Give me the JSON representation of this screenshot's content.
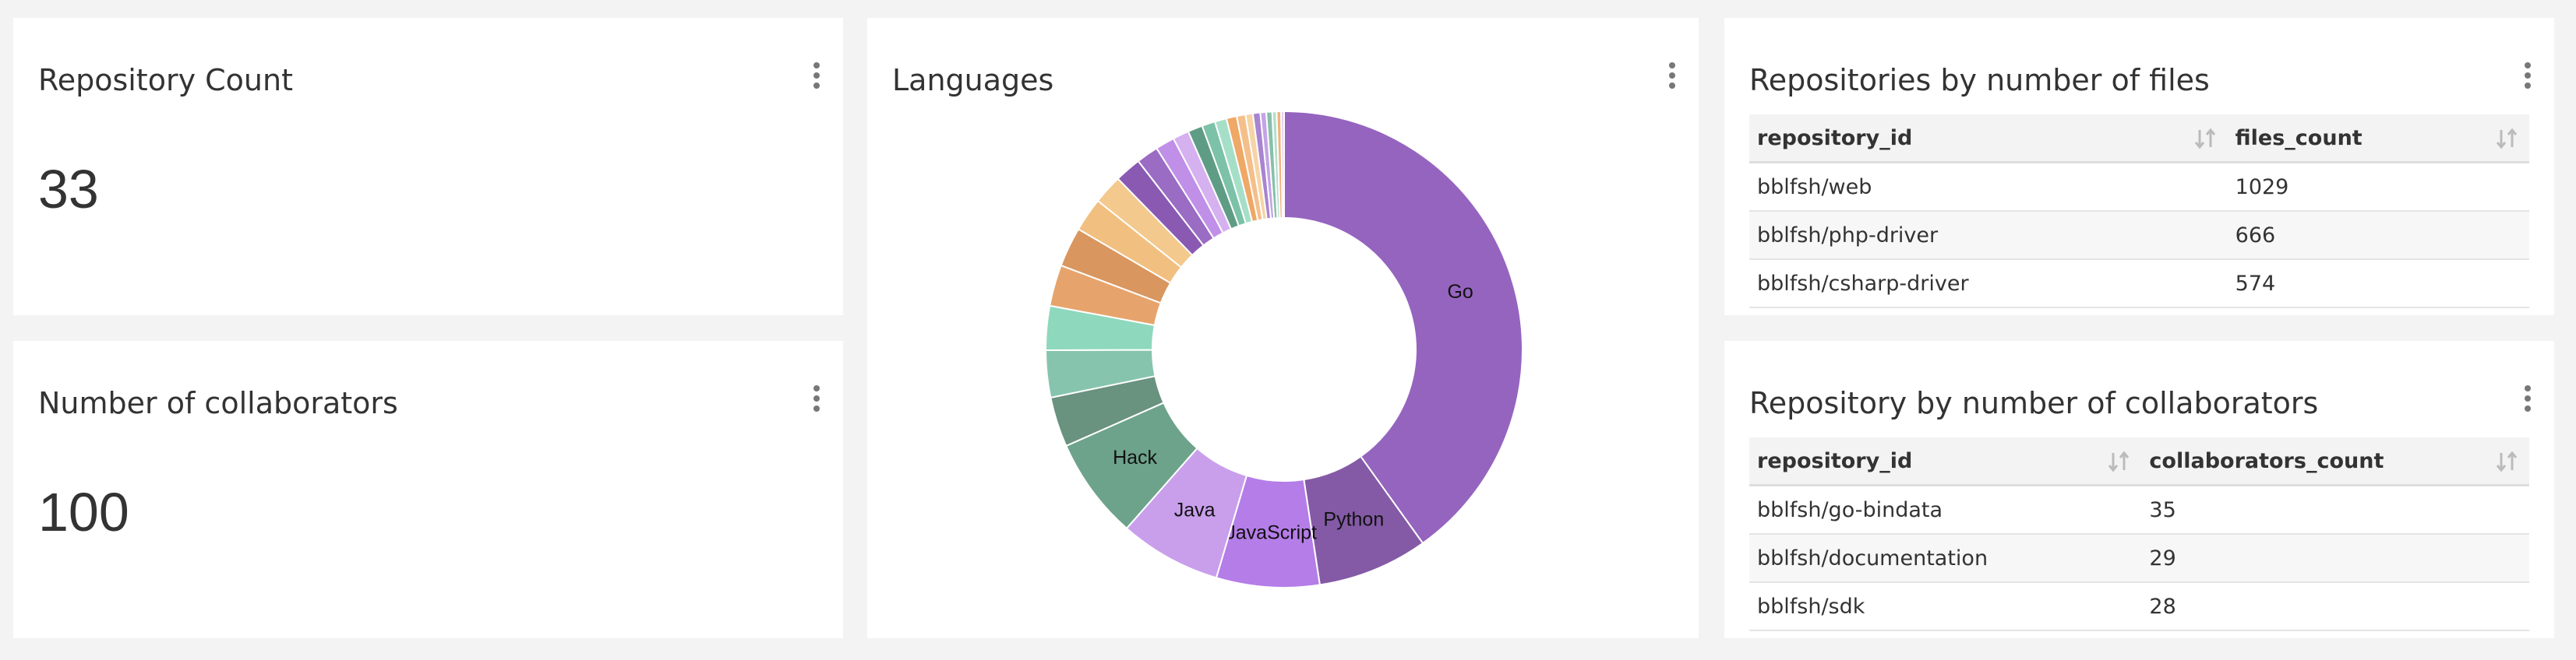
{
  "cards": [
    {
      "title": "Repository Count",
      "value": 33
    },
    {
      "title": "Number of collaborators",
      "value": 100
    }
  ],
  "tables": [
    {
      "title": "Repositories by number of files",
      "columns": [
        "repository_id",
        "files_count"
      ],
      "rows": [
        [
          "bblfsh/web",
          1029
        ],
        [
          "bblfsh/php-driver",
          666
        ],
        [
          "bblfsh/csharp-driver",
          574
        ]
      ]
    },
    {
      "title": "Repository by number of collaborators",
      "columns": [
        "repository_id",
        "collaborators_count"
      ],
      "rows": [
        [
          "bblfsh/go-bindata",
          35
        ],
        [
          "bblfsh/documentation",
          29
        ],
        [
          "bblfsh/sdk",
          28
        ]
      ]
    }
  ],
  "chart_data": {
    "type": "pie",
    "title": "Languages",
    "donut": true,
    "categories": [
      "Go",
      "Python",
      "JavaScript",
      "Java",
      "Hack",
      null,
      null,
      null,
      null,
      null,
      null,
      null,
      null,
      null,
      null,
      null,
      null,
      null,
      null,
      null,
      null,
      null,
      null,
      null,
      null,
      null,
      null,
      null
    ],
    "values": [
      40.2,
      7.5,
      7.0,
      6.9,
      6.9,
      3.4,
      3.2,
      3.0,
      2.8,
      2.7,
      2.3,
      2.0,
      1.8,
      1.5,
      1.3,
      1.1,
      1.0,
      0.9,
      0.8,
      0.7,
      0.6,
      0.5,
      0.5,
      0.4,
      0.4,
      0.3,
      0.3,
      0.2
    ],
    "colors": [
      "#9564bf",
      "#845aa6",
      "#b57de8",
      "#c99fec",
      "#6da38b",
      "#69927f",
      "#86c4ae",
      "#8ed8bd",
      "#e6a46c",
      "#d9965f",
      "#f1c080",
      "#f3c98d",
      "#8a5ab3",
      "#9a6cc4",
      "#c08fe8",
      "#d5b1f0",
      "#5f9c85",
      "#7cc2a8",
      "#a6dfc8",
      "#efa866",
      "#f4bf8b",
      "#f7d4a6",
      "#a884d1",
      "#c3a4e6",
      "#88bfa9",
      "#b4dfcd",
      "#f0b27a",
      "#e0c8f2"
    ]
  }
}
